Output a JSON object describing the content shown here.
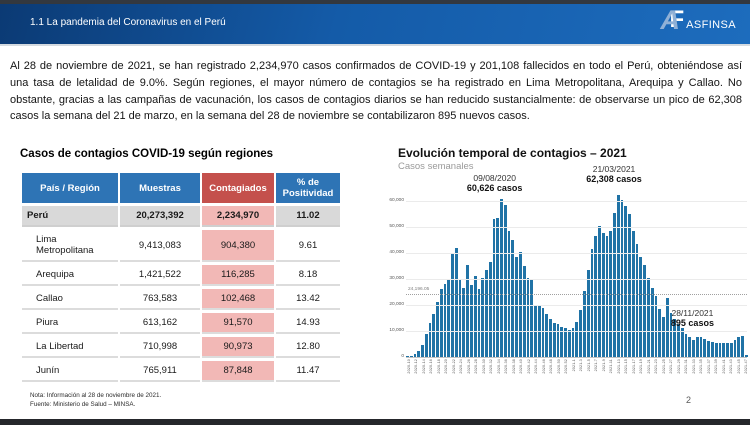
{
  "header": {
    "title": "1.1 La pandemia del Coronavirus en el Perú",
    "logo_a": "A",
    "logo_f": "F",
    "logo_text": "ASFINSA"
  },
  "intro_text": "Al 28 de noviembre de 2021, se han registrado 2,234,970 casos confirmados de COVID-19 y 201,108 fallecidos en todo el Perú, obteniéndose así una tasa de letalidad de 9.0%. Según regiones, el mayor número de contagios se ha registrado en Lima Metropolitana, Arequipa y Callao. No obstante, gracias a las campañas de vacunación, los casos de contagios diarios se han reducido sustancialmente: de observarse un pico de 62,308 casos la semana del 21 de marzo, en la semana del 28 de noviembre se contabilizaron 895 nuevos casos.",
  "table": {
    "title": "Casos de contagios COVID-19 según regiones",
    "columns": [
      "País / Región",
      "Muestras",
      "Contagiados",
      "% de Positividad"
    ],
    "rows": [
      {
        "region": "Perú",
        "muestras": "20,273,392",
        "contagiados": "2,234,970",
        "positividad": "11.02",
        "total": true
      },
      {
        "region": "Lima Metropolitana",
        "muestras": "9,413,083",
        "contagiados": "904,380",
        "positividad": "9.61",
        "total": false
      },
      {
        "region": "Arequipa",
        "muestras": "1,421,522",
        "contagiados": "116,285",
        "positividad": "8.18",
        "total": false
      },
      {
        "region": "Callao",
        "muestras": "763,583",
        "contagiados": "102,468",
        "positividad": "13.42",
        "total": false
      },
      {
        "region": "Piura",
        "muestras": "613,162",
        "contagiados": "91,570",
        "positividad": "14.93",
        "total": false
      },
      {
        "region": "La Libertad",
        "muestras": "710,998",
        "contagiados": "90,973",
        "positividad": "12.80",
        "total": false
      },
      {
        "region": "Junín",
        "muestras": "765,911",
        "contagiados": "87,848",
        "positividad": "11.47",
        "total": false
      }
    ]
  },
  "chart_data": {
    "type": "bar",
    "title": "Evolución temporal de contagios – 2021",
    "subtitle": "Casos semanales",
    "xlabel": "",
    "ylabel": "",
    "ylim": [
      0,
      63000
    ],
    "grid": true,
    "bar_color": "#2073a6",
    "yticks": [
      {
        "label": "60,000",
        "value": 60000
      },
      {
        "label": "50,000",
        "value": 50000
      },
      {
        "label": "40,000",
        "value": 40000
      },
      {
        "label": "30,000",
        "value": 30000
      },
      {
        "label": "20,000",
        "value": 20000
      },
      {
        "label": "10,000",
        "value": 10000
      },
      {
        "label": "0",
        "value": 0
      }
    ],
    "mean_line": {
      "value": 24196.05,
      "label": "24,196.05"
    },
    "annotations": [
      {
        "date": "09/08/2020",
        "cases": "60,626 casos"
      },
      {
        "date": "21/03/2021",
        "cases": "62,308 casos"
      },
      {
        "date": "28/11/2021",
        "cases": "895 casos"
      }
    ],
    "categories": [
      "2020-10",
      "2020-11",
      "2020-12",
      "2020-13",
      "2020-14",
      "2020-15",
      "2020-16",
      "2020-17",
      "2020-18",
      "2020-19",
      "2020-20",
      "2020-21",
      "2020-22",
      "2020-23",
      "2020-24",
      "2020-25",
      "2020-26",
      "2020-27",
      "2020-28",
      "2020-29",
      "2020-30",
      "2020-31",
      "2020-32",
      "2020-33",
      "2020-34",
      "2020-35",
      "2020-36",
      "2020-37",
      "2020-38",
      "2020-39",
      "2020-40",
      "2020-41",
      "2020-42",
      "2020-43",
      "2020-44",
      "2020-45",
      "2020-46",
      "2020-47",
      "2020-48",
      "2020-49",
      "2020-50",
      "2020-51",
      "2020-52",
      "2020-53",
      "2021-1",
      "2021-2",
      "2021-3",
      "2021-4",
      "2021-5",
      "2021-6",
      "2021-7",
      "2021-8",
      "2021-9",
      "2021-10",
      "2021-11",
      "2021-12",
      "2021-13",
      "2021-14",
      "2021-15",
      "2021-16",
      "2021-17",
      "2021-18",
      "2021-19",
      "2021-20",
      "2021-21",
      "2021-22",
      "2021-23",
      "2021-24",
      "2021-25",
      "2021-26",
      "2021-27",
      "2021-28",
      "2021-29",
      "2021-30",
      "2021-31",
      "2021-32",
      "2021-33",
      "2021-34",
      "2021-35",
      "2021-36",
      "2021-37",
      "2021-38",
      "2021-39",
      "2021-40",
      "2021-41",
      "2021-42",
      "2021-43",
      "2021-44",
      "2021-45",
      "2021-46",
      "2021-47"
    ],
    "values": [
      150,
      400,
      1000,
      2200,
      4800,
      9000,
      13000,
      16500,
      21000,
      26000,
      28000,
      29500,
      39500,
      42000,
      29800,
      26500,
      35500,
      27800,
      31000,
      26000,
      30500,
      33500,
      36500,
      53000,
      53500,
      60626,
      58500,
      48500,
      45000,
      38500,
      40500,
      35000,
      30500,
      29500,
      20000,
      19500,
      19000,
      16500,
      14500,
      13000,
      12500,
      11500,
      11000,
      10500,
      11000,
      13500,
      18000,
      25500,
      33500,
      41500,
      46500,
      50300,
      47500,
      46300,
      48500,
      55500,
      62308,
      60500,
      58000,
      55000,
      48500,
      43500,
      38500,
      35500,
      30500,
      26500,
      23500,
      18500,
      15500,
      22800,
      17000,
      14500,
      12500,
      11000,
      9000,
      7500,
      6500,
      7800,
      7800,
      7000,
      6300,
      5800,
      5500,
      5300,
      5200,
      5200,
      5400,
      6500,
      7500,
      8200,
      895
    ]
  },
  "footer": {
    "note": "Nota: Información al 28 de noviembre de 2021.",
    "source": "Fuente: Ministerio de Salud – MINSA.",
    "page_number": "2"
  }
}
